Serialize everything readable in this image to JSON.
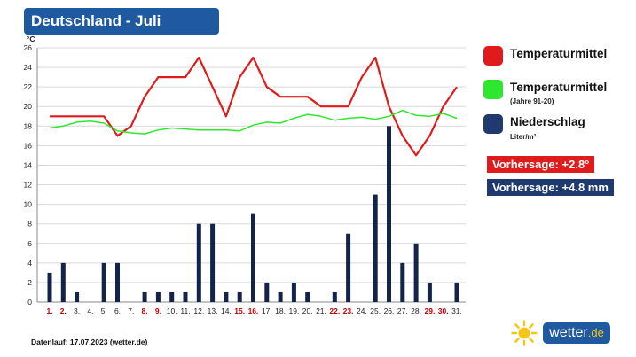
{
  "header": {
    "title": "Deutschland - Juli"
  },
  "chart_data": {
    "type": "line",
    "y_unit": "°C",
    "ylim": [
      0,
      26
    ],
    "yticks": [
      0,
      2,
      4,
      6,
      8,
      10,
      12,
      14,
      16,
      18,
      20,
      22,
      24,
      26
    ],
    "grid": true,
    "categories": [
      "1.",
      "2.",
      "3.",
      "4.",
      "5.",
      "6.",
      "7.",
      "8.",
      "9.",
      "10.",
      "11.",
      "12.",
      "13.",
      "14.",
      "15.",
      "16.",
      "17.",
      "18.",
      "19.",
      "20.",
      "21.",
      "22.",
      "23.",
      "24.",
      "25.",
      "26.",
      "27.",
      "28.",
      "29.",
      "30.",
      "31."
    ],
    "highlight_days": [
      "1.",
      "2.",
      "8.",
      "9.",
      "15.",
      "16.",
      "22.",
      "23.",
      "29.",
      "30."
    ],
    "series": [
      {
        "name": "Temperaturmittel",
        "type": "line",
        "color": "#e01b1b",
        "values": [
          19,
          19,
          19,
          19,
          19,
          17,
          18,
          21,
          23,
          23,
          23,
          25,
          22,
          19,
          23,
          25,
          22,
          21,
          21,
          21,
          20,
          20,
          20,
          23,
          25,
          20,
          17,
          15,
          17,
          20,
          22
        ]
      },
      {
        "name": "Temperaturmittel",
        "type": "line",
        "color": "#2ee82e",
        "values": [
          17.8,
          18.0,
          18.4,
          18.5,
          18.3,
          17.5,
          17.3,
          17.2,
          17.6,
          17.8,
          17.7,
          17.6,
          17.6,
          17.6,
          17.5,
          18.1,
          18.4,
          18.3,
          18.8,
          19.2,
          19.0,
          18.6,
          18.8,
          18.9,
          18.7,
          19.0,
          19.6,
          19.1,
          19.0,
          19.3,
          18.8
        ]
      },
      {
        "name": "Niederschlag",
        "type": "bar",
        "color": "#142448",
        "values": [
          3,
          4,
          1,
          0,
          4,
          4,
          0,
          1,
          1,
          1,
          1,
          8,
          8,
          1,
          1,
          9,
          2,
          1,
          2,
          1,
          0,
          1,
          7,
          0,
          11,
          18,
          4,
          6,
          2,
          0,
          2
        ]
      }
    ]
  },
  "legend": {
    "temp": {
      "label": "Temperaturmittel",
      "color": "#e01b1b"
    },
    "climate": {
      "label": "Temperaturmittel",
      "sub": "(Jahre 91-20)",
      "color": "#2ee82e"
    },
    "precip": {
      "label": "Niederschlag",
      "sub": "Liter/m²",
      "color": "#1f3a6e"
    }
  },
  "forecasts": [
    {
      "text": "Vorhersage: +2.8°",
      "color": "#e01b1b"
    },
    {
      "text": "Vorhersage: +4.8 mm",
      "color": "#1f3a6e"
    }
  ],
  "footer": {
    "note": "Datenlauf: 17.07.2023 (wetter.de)"
  },
  "brand": {
    "name": "wetter",
    "tld": ".de"
  }
}
